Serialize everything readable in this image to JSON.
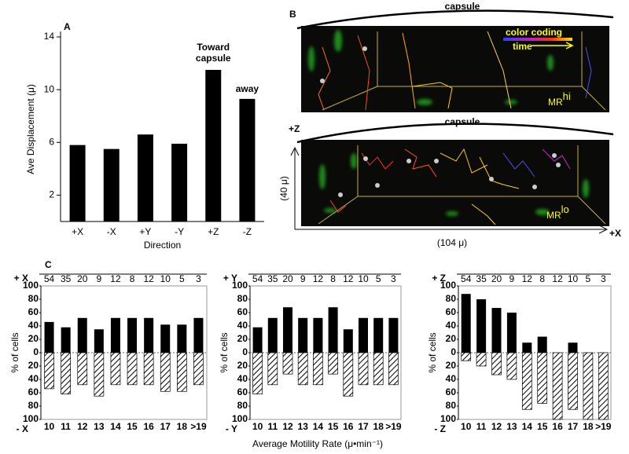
{
  "chart_data": [
    {
      "type": "bar",
      "panel": "A",
      "ylabel": "Ave Displacement (μ)",
      "xlabel": "Direction",
      "categories": [
        "+X",
        "-X",
        "+Y",
        "-Y",
        "+Z",
        "-Z"
      ],
      "values": [
        5.8,
        5.5,
        6.6,
        5.9,
        11.5,
        9.3
      ],
      "color": "#000000",
      "ylim": [
        0,
        14
      ],
      "yticks": [
        2,
        6,
        10,
        14
      ],
      "annotations": [
        "Toward capsule",
        "away"
      ]
    },
    {
      "type": "diverging_bar",
      "panel": "C",
      "ylabel": "% of cells",
      "categories": [
        "10",
        "11",
        "12",
        "13",
        "14",
        "15",
        "16",
        "17",
        "18",
        ">19"
      ],
      "counts": [
        54,
        35,
        20,
        9,
        12,
        8,
        12,
        10,
        5,
        3
      ],
      "ylim": [
        -100,
        100
      ],
      "yticks": [
        {
          "value": -100,
          "label": "100"
        },
        {
          "value": -80,
          "label": "80"
        },
        {
          "value": -60,
          "label": "60"
        },
        {
          "value": -40,
          "label": "40"
        },
        {
          "value": -20,
          "label": "20"
        },
        0,
        20,
        40,
        60,
        80,
        100
      ],
      "series": [
        {
          "name": "+ X",
          "color": "#000000",
          "values": [
            46,
            38,
            52,
            35,
            52,
            52,
            52,
            42,
            42,
            52
          ]
        },
        {
          "name": "- X",
          "color": "#000000",
          "pattern": "hatch",
          "values": [
            -54,
            -62,
            -48,
            -65,
            -48,
            -48,
            -48,
            -58,
            -58,
            -48
          ]
        }
      ]
    },
    {
      "type": "diverging_bar",
      "ylabel": "% of cells",
      "xlabel": "Average Motility Rate (μ•min⁻¹)",
      "categories": [
        "10",
        "11",
        "12",
        "13",
        "14",
        "15",
        "16",
        "17",
        "18",
        ">19"
      ],
      "counts": [
        54,
        35,
        20,
        9,
        12,
        8,
        12,
        10,
        5,
        3
      ],
      "ylim": [
        -100,
        100
      ],
      "yticks": [
        {
          "value": -100,
          "label": "100"
        },
        {
          "value": -80,
          "label": "80"
        },
        {
          "value": -60,
          "label": "60"
        },
        {
          "value": -40,
          "label": "40"
        },
        {
          "value": -20,
          "label": "20"
        },
        0,
        20,
        40,
        60,
        80,
        100
      ],
      "series": [
        {
          "name": "+ Y",
          "color": "#000000",
          "values": [
            38,
            52,
            68,
            52,
            52,
            68,
            35,
            52,
            52,
            52
          ]
        },
        {
          "name": "- Y",
          "color": "#000000",
          "pattern": "hatch",
          "values": [
            -62,
            -48,
            -32,
            -48,
            -48,
            -32,
            -65,
            -48,
            -48,
            -48
          ]
        }
      ]
    },
    {
      "type": "diverging_bar",
      "ylabel": "% of cells",
      "categories": [
        "10",
        "11",
        "12",
        "13",
        "14",
        "15",
        "16",
        "17",
        "18",
        ">19"
      ],
      "counts": [
        54,
        35,
        20,
        9,
        12,
        8,
        12,
        10,
        5,
        3
      ],
      "ylim": [
        -100,
        100
      ],
      "yticks": [
        {
          "value": -100,
          "label": "100"
        },
        {
          "value": -80,
          "label": "80"
        },
        {
          "value": -60,
          "label": "60"
        },
        {
          "value": -40,
          "label": "40"
        },
        {
          "value": -20,
          "label": "20"
        },
        0,
        20,
        40,
        60,
        80,
        100
      ],
      "series": [
        {
          "name": "+ Z",
          "color": "#000000",
          "values": [
            88,
            80,
            67,
            60,
            15,
            24,
            0,
            15,
            0,
            0
          ]
        },
        {
          "name": "- Z",
          "color": "#000000",
          "pattern": "hatch",
          "values": [
            -12,
            -20,
            -33,
            -40,
            -85,
            -76,
            -100,
            -85,
            -100,
            -100
          ]
        }
      ]
    }
  ],
  "panel_b": {
    "panel": "B",
    "capsule_top": "capsule",
    "capsule_bottom": "capsule",
    "color_coding": "color coding",
    "time": "time",
    "mr_hi": {
      "base": "MR",
      "sup": "hi"
    },
    "mr_lo": {
      "base": "MR",
      "sup": "lo"
    },
    "z_axis": "+Z",
    "x_axis": "+X",
    "z_extent": "(40 μ)",
    "x_extent": "(104 μ)"
  }
}
